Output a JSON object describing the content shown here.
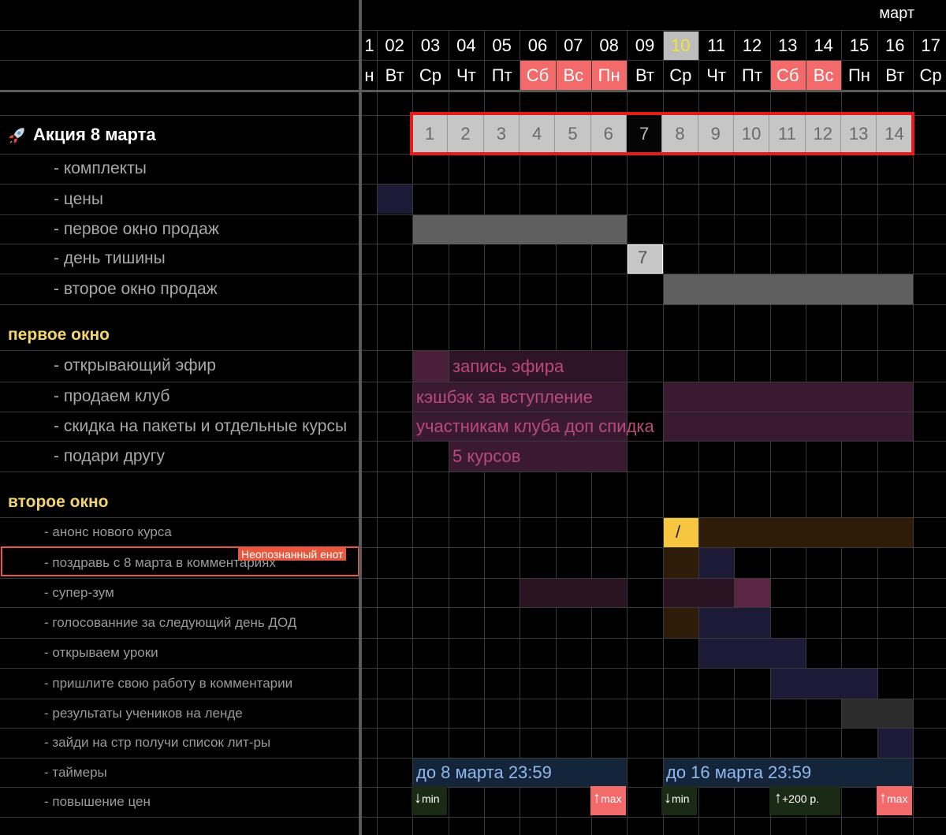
{
  "header": {
    "month": "март",
    "days": [
      {
        "num": "1",
        "name": "н",
        "weekend": false,
        "today": false
      },
      {
        "num": "02",
        "name": "Вт",
        "weekend": false,
        "today": false
      },
      {
        "num": "03",
        "name": "Ср",
        "weekend": false,
        "today": false
      },
      {
        "num": "04",
        "name": "Чт",
        "weekend": false,
        "today": false
      },
      {
        "num": "05",
        "name": "Пт",
        "weekend": false,
        "today": false
      },
      {
        "num": "06",
        "name": "Сб",
        "weekend": true,
        "today": false
      },
      {
        "num": "07",
        "name": "Вс",
        "weekend": true,
        "today": false
      },
      {
        "num": "08",
        "name": "Пн",
        "weekend": true,
        "today": false
      },
      {
        "num": "09",
        "name": "Вт",
        "weekend": false,
        "today": false
      },
      {
        "num": "10",
        "name": "Ср",
        "weekend": false,
        "today": true
      },
      {
        "num": "11",
        "name": "Чт",
        "weekend": false,
        "today": false
      },
      {
        "num": "12",
        "name": "Пт",
        "weekend": false,
        "today": false
      },
      {
        "num": "13",
        "name": "Сб",
        "weekend": true,
        "today": false
      },
      {
        "num": "14",
        "name": "Вс",
        "weekend": true,
        "today": false
      },
      {
        "num": "15",
        "name": "Пн",
        "weekend": false,
        "today": false
      },
      {
        "num": "16",
        "name": "Вт",
        "weekend": false,
        "today": false
      },
      {
        "num": "17",
        "name": "Ср",
        "weekend": false,
        "today": false
      }
    ]
  },
  "rows": [
    {
      "label": "Акция 8 марта",
      "style": "main-title",
      "icon": "rocket-icon"
    },
    {
      "label": "- комплекты",
      "style": "sub"
    },
    {
      "label": "- цены",
      "style": "sub"
    },
    {
      "label": "- первое окно продаж",
      "style": "sub"
    },
    {
      "label": "- день тишины",
      "style": "sub"
    },
    {
      "label": "- второе окно продаж",
      "style": "sub"
    },
    {
      "label": "первое окно",
      "style": "section"
    },
    {
      "label": "- открывающий эфир",
      "style": "sub"
    },
    {
      "label": "- продаем клуб",
      "style": "sub"
    },
    {
      "label": "- скидка на пакеты и отдельные курсы",
      "style": "sub"
    },
    {
      "label": "- подари другу",
      "style": "sub"
    },
    {
      "label": "второе окно",
      "style": "section"
    },
    {
      "label": "- анонс нового курса",
      "style": "small"
    },
    {
      "label": "- поздравь с 8 марта  в комментариях",
      "style": "small"
    },
    {
      "label": "- супер-зум",
      "style": "small"
    },
    {
      "label": "- голосованние за следующий день ДОД",
      "style": "small"
    },
    {
      "label": "- открываем уроки",
      "style": "small"
    },
    {
      "label": "- пришлите свою работу в комментарии",
      "style": "small"
    },
    {
      "label": "- результаты учеников на ленде",
      "style": "small"
    },
    {
      "label": "- зайди на стр получи список лит-ры",
      "style": "small"
    },
    {
      "label": "- таймеры",
      "style": "small"
    },
    {
      "label": "- повышение цен",
      "style": "small"
    }
  ],
  "promo_days": [
    "1",
    "2",
    "3",
    "4",
    "5",
    "6",
    "7",
    "8",
    "9",
    "10",
    "11",
    "12",
    "13",
    "14"
  ],
  "silence_day": "7",
  "bar_texts": {
    "stream_record": "запись эфира",
    "club_cashback": "кэшбэк за вступление",
    "club_discount": "участникам клуба доп спидка",
    "gift": "5 курсов",
    "announce_marker": "/"
  },
  "timers": {
    "first": "до 8 марта 23:59",
    "second": "до 16 марта 23:59"
  },
  "price_changes": {
    "first_min": "min",
    "first_max": "max",
    "second_min": "min",
    "second_plus": "+200 р.",
    "second_max": "max"
  },
  "collaborator": {
    "name": "Неопознанный енот",
    "color": "#e8583f"
  },
  "colors": {
    "weekend": "#f26a6a",
    "today_text": "#f7e23a",
    "promo_frame": "#e21d1d",
    "section_title": "#f3d56b"
  }
}
